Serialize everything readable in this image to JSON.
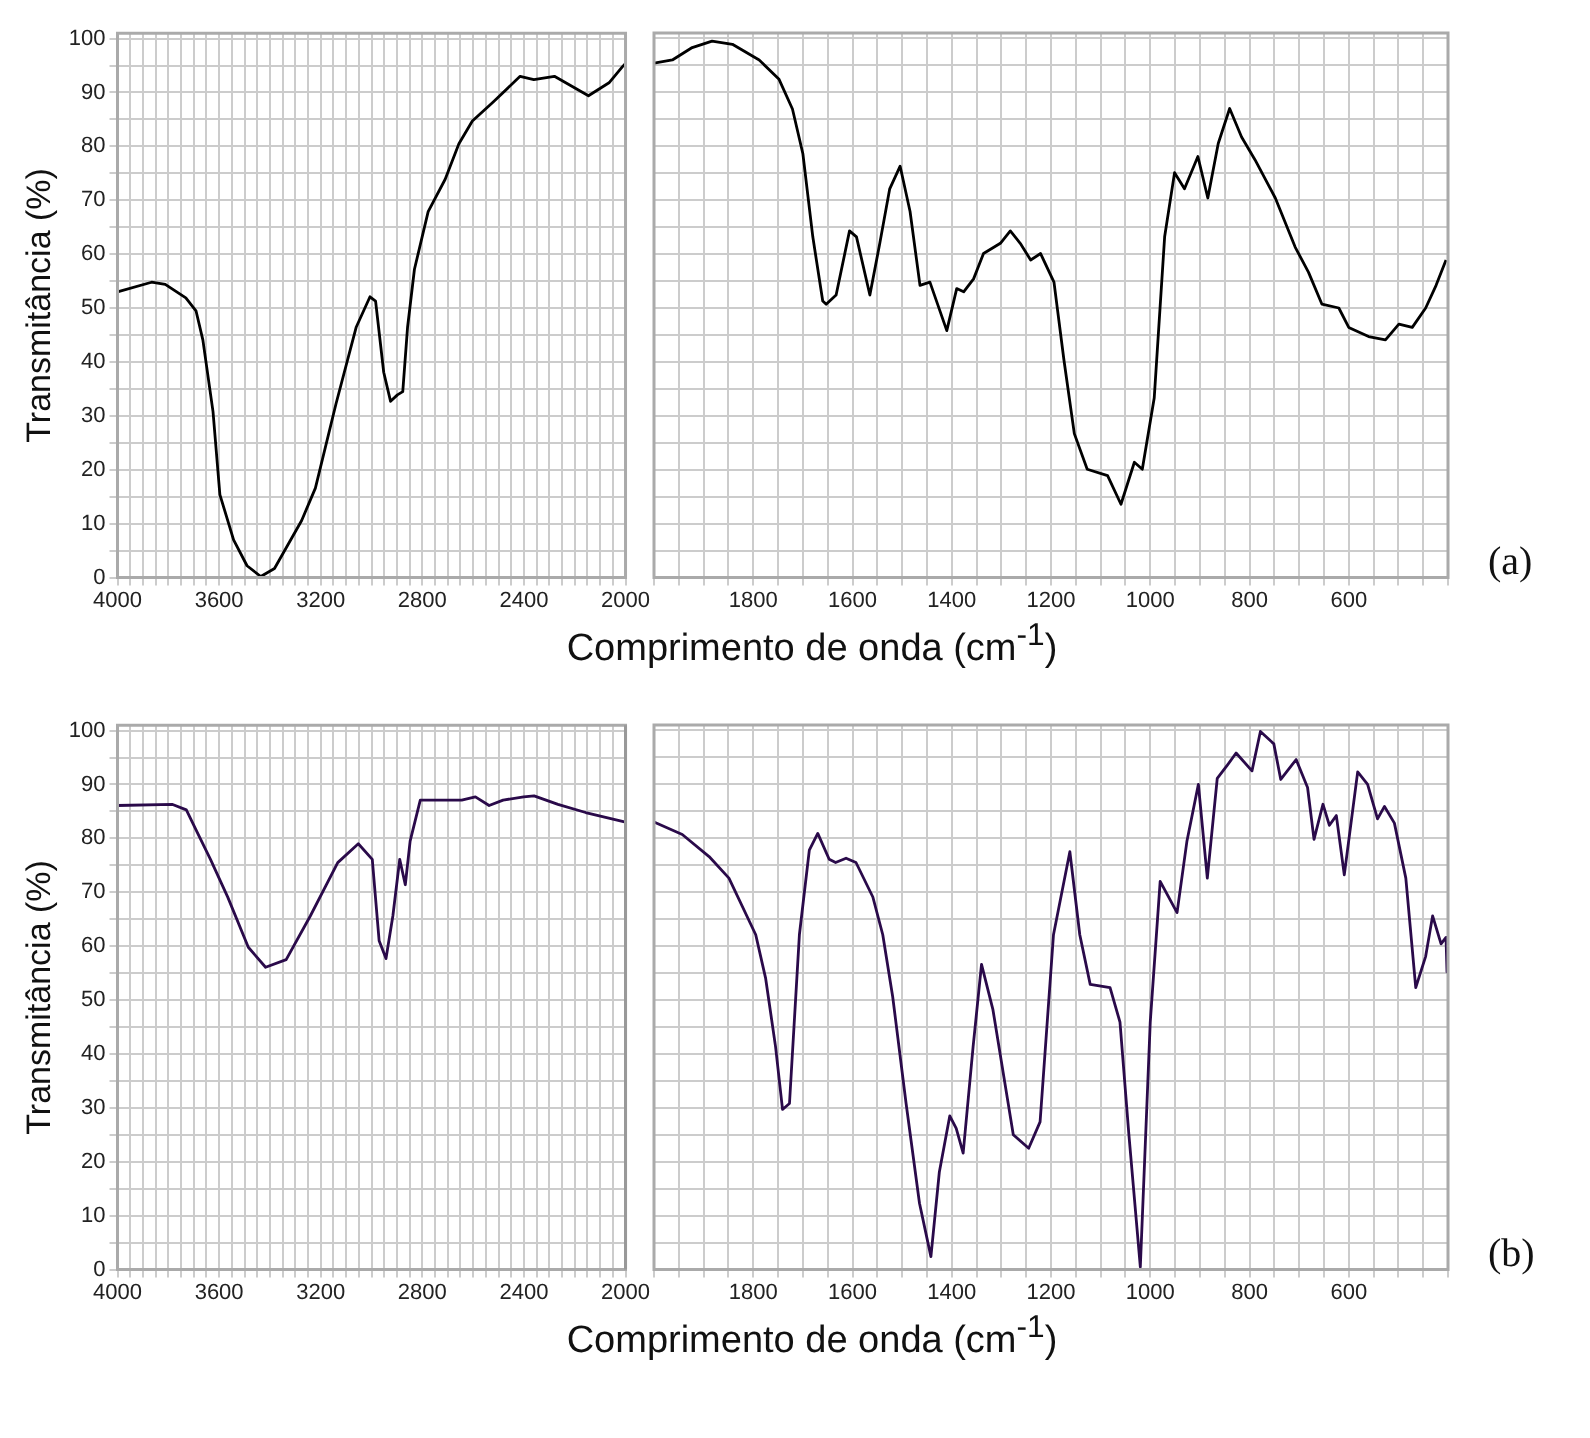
{
  "chart_data": [
    {
      "type": "line",
      "ylabel": "Transmitância (%)",
      "color": "#000000",
      "grid": true,
      "x": [
        4000,
        3866,
        3812,
        3731,
        3691,
        3664,
        3624,
        3597,
        3543,
        3490,
        3436,
        3382,
        3275,
        3221,
        3140,
        3060,
        3006,
        2984,
        2952,
        2925,
        2898,
        2877,
        2858,
        2831,
        2777,
        2710,
        2656,
        2603,
        2522,
        2415,
        2361,
        2280,
        2146,
        2065,
        2012,
        2000
      ],
      "values": [
        53.0,
        54.8,
        54.4,
        51.9,
        49.5,
        44.1,
        30.8,
        15.4,
        7.0,
        2.2,
        0.2,
        1.7,
        10.6,
        16.6,
        32.2,
        46.5,
        52.1,
        51.3,
        38.1,
        32.7,
        33.9,
        34.5,
        46.5,
        57.2,
        67.9,
        73.9,
        80.5,
        84.7,
        88.2,
        93.0,
        92.4,
        93.0,
        89.4,
        91.8,
        94.8,
        95.4
      ],
      "xlim": [
        4000,
        2000
      ],
      "ylim": [
        0,
        101
      ],
      "xticks": [
        4000,
        {
          "value": 3950,
          "label": null
        },
        {
          "value": 3900,
          "label": null
        },
        {
          "value": 3850,
          "label": null
        },
        {
          "value": 3800,
          "label": null
        },
        {
          "value": 3750,
          "label": null
        },
        {
          "value": 3700,
          "label": null
        },
        {
          "value": 3650,
          "label": null
        },
        3600,
        {
          "value": 3550,
          "label": null
        },
        {
          "value": 3500,
          "label": null
        },
        {
          "value": 3450,
          "label": null
        },
        {
          "value": 3400,
          "label": null
        },
        {
          "value": 3350,
          "label": null
        },
        {
          "value": 3300,
          "label": null
        },
        {
          "value": 3250,
          "label": null
        },
        3200,
        {
          "value": 3150,
          "label": null
        },
        {
          "value": 3100,
          "label": null
        },
        {
          "value": 3050,
          "label": null
        },
        {
          "value": 3000,
          "label": null
        },
        {
          "value": 2950,
          "label": null
        },
        {
          "value": 2900,
          "label": null
        },
        {
          "value": 2850,
          "label": null
        },
        2800,
        {
          "value": 2750,
          "label": null
        },
        {
          "value": 2700,
          "label": null
        },
        {
          "value": 2650,
          "label": null
        },
        {
          "value": 2600,
          "label": null
        },
        {
          "value": 2550,
          "label": null
        },
        {
          "value": 2500,
          "label": null
        },
        {
          "value": 2450,
          "label": null
        },
        2400,
        {
          "value": 2350,
          "label": null
        },
        {
          "value": 2300,
          "label": null
        },
        {
          "value": 2250,
          "label": null
        },
        {
          "value": 2200,
          "label": null
        },
        {
          "value": 2150,
          "label": null
        },
        {
          "value": 2100,
          "label": null
        },
        {
          "value": 2050,
          "label": null
        },
        2000
      ],
      "yticks": [
        0,
        {
          "value": 5,
          "label": null
        },
        10,
        {
          "value": 15,
          "label": null
        },
        20,
        {
          "value": 25,
          "label": null
        },
        30,
        {
          "value": 35,
          "label": null
        },
        40,
        {
          "value": 45,
          "label": null
        },
        50,
        {
          "value": 55,
          "label": null
        },
        60,
        {
          "value": 65,
          "label": null
        },
        70,
        {
          "value": 75,
          "label": null
        },
        80,
        {
          "value": 85,
          "label": null
        },
        90,
        {
          "value": 95,
          "label": null
        },
        100
      ]
    },
    {
      "type": "line",
      "xlabel": "Comprimento de onda (cm$^{-1}$)",
      "annotations": [
        "(a)"
      ],
      "color": "#000000",
      "grid": true,
      "tick_labels": "x",
      "x": [
        2000,
        1963,
        1923,
        1883,
        1842,
        1788,
        1748,
        1721,
        1700,
        1680,
        1660,
        1653,
        1633,
        1606,
        1592,
        1565,
        1545,
        1525,
        1504,
        1484,
        1464,
        1444,
        1410,
        1390,
        1376,
        1356,
        1336,
        1302,
        1282,
        1262,
        1241,
        1221,
        1194,
        1174,
        1153,
        1127,
        1086,
        1059,
        1032,
        1016,
        992,
        971,
        951,
        931,
        904,
        884,
        863,
        840,
        816,
        789,
        748,
        708,
        681,
        654,
        620,
        600,
        560,
        526,
        499,
        472,
        445,
        424,
        404
      ],
      "values": [
        95.4,
        96.0,
        98.3,
        99.5,
        98.9,
        96.0,
        92.4,
        86.9,
        78.6,
        63.2,
        51.3,
        50.7,
        52.4,
        64.3,
        63.2,
        52.4,
        62.0,
        72.1,
        76.3,
        67.9,
        54.2,
        54.8,
        45.8,
        53.6,
        53.0,
        55.4,
        60.1,
        62.0,
        64.3,
        62.0,
        58.9,
        60.1,
        54.8,
        40.4,
        26.7,
        20.1,
        18.9,
        13.6,
        21.4,
        20.1,
        33.3,
        63.2,
        75.1,
        72.1,
        78.1,
        70.4,
        80.5,
        87.0,
        81.7,
        77.5,
        70.4,
        61.3,
        56.6,
        50.7,
        50.0,
        46.4,
        44.7,
        44.1,
        47.0,
        46.4,
        50.0,
        54.2,
        58.9
      ],
      "xlim": [
        2000,
        400
      ],
      "ylim": [
        0,
        101
      ],
      "xticks": [
        {
          "value": 2000,
          "label": null
        },
        {
          "value": 1950,
          "label": null
        },
        {
          "value": 1900,
          "label": null
        },
        {
          "value": 1850,
          "label": null
        },
        1800,
        {
          "value": 1750,
          "label": null
        },
        {
          "value": 1700,
          "label": null
        },
        {
          "value": 1650,
          "label": null
        },
        1600,
        {
          "value": 1550,
          "label": null
        },
        {
          "value": 1500,
          "label": null
        },
        {
          "value": 1450,
          "label": null
        },
        1400,
        {
          "value": 1350,
          "label": null
        },
        {
          "value": 1300,
          "label": null
        },
        {
          "value": 1250,
          "label": null
        },
        1200,
        {
          "value": 1150,
          "label": null
        },
        {
          "value": 1100,
          "label": null
        },
        {
          "value": 1050,
          "label": null
        },
        1000,
        {
          "value": 950,
          "label": null
        },
        {
          "value": 900,
          "label": null
        },
        {
          "value": 850,
          "label": null
        },
        800,
        {
          "value": 750,
          "label": null
        },
        {
          "value": 700,
          "label": null
        },
        {
          "value": 650,
          "label": null
        },
        600,
        {
          "value": 550,
          "label": null
        },
        {
          "value": 500,
          "label": null
        },
        {
          "value": 450,
          "label": null
        },
        {
          "value": 400,
          "label": null
        }
      ],
      "yticks": [
        0,
        {
          "value": 5,
          "label": null
        },
        10,
        {
          "value": 15,
          "label": null
        },
        20,
        {
          "value": 25,
          "label": null
        },
        30,
        {
          "value": 35,
          "label": null
        },
        40,
        {
          "value": 45,
          "label": null
        },
        50,
        {
          "value": 55,
          "label": null
        },
        60,
        {
          "value": 65,
          "label": null
        },
        70,
        {
          "value": 75,
          "label": null
        },
        80,
        {
          "value": 85,
          "label": null
        },
        90,
        {
          "value": 95,
          "label": null
        },
        100
      ]
    },
    {
      "type": "line",
      "ylabel": "Transmitância (%)",
      "color": "#2a0a4a",
      "grid": true,
      "ref_lines": [
        {
          "axis": "x",
          "value": 2000,
          "color": "#999999"
        }
      ],
      "x": [
        4000,
        3783,
        3729,
        3688,
        3634,
        3566,
        3485,
        3417,
        3336,
        3241,
        3133,
        3052,
        2997,
        2970,
        2943,
        2916,
        2889,
        2867,
        2848,
        2808,
        2645,
        2591,
        2537,
        2482,
        2401,
        2360,
        2266,
        2157,
        2000
      ],
      "values": [
        86.1,
        86.3,
        85.3,
        81.3,
        76.1,
        69.1,
        59.8,
        56.1,
        57.5,
        65.6,
        75.5,
        79.0,
        76.1,
        61.0,
        57.7,
        65.6,
        76.1,
        71.4,
        79.5,
        87.1,
        87.1,
        87.7,
        86.1,
        87.1,
        87.7,
        87.9,
        86.3,
        84.8,
        83.0
      ],
      "xlim": [
        4000,
        2000
      ],
      "ylim": [
        0,
        101
      ],
      "xticks": [
        4000,
        {
          "value": 3950,
          "label": null
        },
        {
          "value": 3900,
          "label": null
        },
        {
          "value": 3850,
          "label": null
        },
        {
          "value": 3800,
          "label": null
        },
        {
          "value": 3750,
          "label": null
        },
        {
          "value": 3700,
          "label": null
        },
        {
          "value": 3650,
          "label": null
        },
        3600,
        {
          "value": 3550,
          "label": null
        },
        {
          "value": 3500,
          "label": null
        },
        {
          "value": 3450,
          "label": null
        },
        {
          "value": 3400,
          "label": null
        },
        {
          "value": 3350,
          "label": null
        },
        {
          "value": 3300,
          "label": null
        },
        {
          "value": 3250,
          "label": null
        },
        3200,
        {
          "value": 3150,
          "label": null
        },
        {
          "value": 3100,
          "label": null
        },
        {
          "value": 3050,
          "label": null
        },
        {
          "value": 3000,
          "label": null
        },
        {
          "value": 2950,
          "label": null
        },
        {
          "value": 2900,
          "label": null
        },
        {
          "value": 2850,
          "label": null
        },
        2800,
        {
          "value": 2750,
          "label": null
        },
        {
          "value": 2700,
          "label": null
        },
        {
          "value": 2650,
          "label": null
        },
        {
          "value": 2600,
          "label": null
        },
        {
          "value": 2550,
          "label": null
        },
        {
          "value": 2500,
          "label": null
        },
        {
          "value": 2450,
          "label": null
        },
        2400,
        {
          "value": 2350,
          "label": null
        },
        {
          "value": 2300,
          "label": null
        },
        {
          "value": 2250,
          "label": null
        },
        {
          "value": 2200,
          "label": null
        },
        {
          "value": 2150,
          "label": null
        },
        {
          "value": 2100,
          "label": null
        },
        {
          "value": 2050,
          "label": null
        },
        2000
      ],
      "yticks": [
        0,
        {
          "value": 5,
          "label": null
        },
        10,
        {
          "value": 15,
          "label": null
        },
        20,
        {
          "value": 25,
          "label": null
        },
        30,
        {
          "value": 35,
          "label": null
        },
        40,
        {
          "value": 45,
          "label": null
        },
        50,
        {
          "value": 55,
          "label": null
        },
        60,
        {
          "value": 65,
          "label": null
        },
        70,
        {
          "value": 75,
          "label": null
        },
        80,
        {
          "value": 85,
          "label": null
        },
        90,
        {
          "value": 95,
          "label": null
        },
        100
      ]
    },
    {
      "type": "line",
      "xlabel": "Comprimento de onda (cm$^{-1}$)",
      "annotations": [
        "(b)"
      ],
      "color": "#2a0a4a",
      "grid": true,
      "tick_labels": "x",
      "x": [
        2000,
        1943,
        1889,
        1849,
        1795,
        1775,
        1755,
        1741,
        1727,
        1707,
        1687,
        1670,
        1647,
        1634,
        1613,
        1593,
        1559,
        1539,
        1519,
        1492,
        1465,
        1442,
        1425,
        1404,
        1391,
        1377,
        1357,
        1340,
        1317,
        1276,
        1245,
        1222,
        1195,
        1162,
        1142,
        1121,
        1081,
        1061,
        1043,
        1020,
        1000,
        980,
        946,
        926,
        903,
        885,
        865,
        845,
        827,
        795,
        778,
        751,
        737,
        706,
        683,
        670,
        652,
        639,
        625,
        609,
        582,
        562,
        542,
        528,
        508,
        485,
        465,
        445,
        431,
        414,
        404,
        402
      ],
      "values": [
        83.0,
        80.7,
        76.6,
        72.6,
        62.1,
        54.0,
        41.3,
        29.7,
        30.8,
        62.1,
        77.8,
        80.9,
        76.1,
        75.5,
        76.3,
        75.5,
        69.1,
        62.1,
        50.6,
        30.8,
        12.3,
        2.4,
        18.1,
        28.5,
        26.2,
        21.6,
        41.3,
        56.6,
        48.2,
        25.0,
        22.5,
        27.4,
        62.1,
        77.5,
        62.1,
        52.9,
        52.3,
        45.9,
        25.0,
        0.5,
        45.9,
        72.0,
        66.2,
        79.5,
        90.0,
        72.6,
        91.1,
        93.5,
        95.8,
        92.5,
        99.8,
        97.5,
        90.9,
        94.6,
        89.4,
        79.8,
        86.3,
        82.4,
        84.2,
        73.2,
        92.3,
        90.0,
        83.6,
        85.9,
        82.8,
        72.6,
        52.3,
        58.1,
        65.6,
        60.4,
        61.6,
        55.2
      ],
      "xlim": [
        2000,
        400
      ],
      "ylim": [
        0,
        101
      ],
      "xticks": [
        {
          "value": 2000,
          "label": null
        },
        {
          "value": 1950,
          "label": null
        },
        {
          "value": 1900,
          "label": null
        },
        {
          "value": 1850,
          "label": null
        },
        1800,
        {
          "value": 1750,
          "label": null
        },
        {
          "value": 1700,
          "label": null
        },
        {
          "value": 1650,
          "label": null
        },
        1600,
        {
          "value": 1550,
          "label": null
        },
        {
          "value": 1500,
          "label": null
        },
        {
          "value": 1450,
          "label": null
        },
        1400,
        {
          "value": 1350,
          "label": null
        },
        {
          "value": 1300,
          "label": null
        },
        {
          "value": 1250,
          "label": null
        },
        1200,
        {
          "value": 1150,
          "label": null
        },
        {
          "value": 1100,
          "label": null
        },
        {
          "value": 1050,
          "label": null
        },
        1000,
        {
          "value": 950,
          "label": null
        },
        {
          "value": 900,
          "label": null
        },
        {
          "value": 850,
          "label": null
        },
        800,
        {
          "value": 750,
          "label": null
        },
        {
          "value": 700,
          "label": null
        },
        {
          "value": 650,
          "label": null
        },
        600,
        {
          "value": 550,
          "label": null
        },
        {
          "value": 500,
          "label": null
        },
        {
          "value": 450,
          "label": null
        },
        {
          "value": 400,
          "label": null
        }
      ],
      "yticks": [
        0,
        {
          "value": 5,
          "label": null
        },
        10,
        {
          "value": 15,
          "label": null
        },
        20,
        {
          "value": 25,
          "label": null
        },
        30,
        {
          "value": 35,
          "label": null
        },
        40,
        {
          "value": 45,
          "label": null
        },
        50,
        {
          "value": 55,
          "label": null
        },
        60,
        {
          "value": 65,
          "label": null
        },
        70,
        {
          "value": 75,
          "label": null
        },
        80,
        {
          "value": 85,
          "label": null
        },
        90,
        {
          "value": 95,
          "label": null
        },
        100
      ]
    }
  ]
}
